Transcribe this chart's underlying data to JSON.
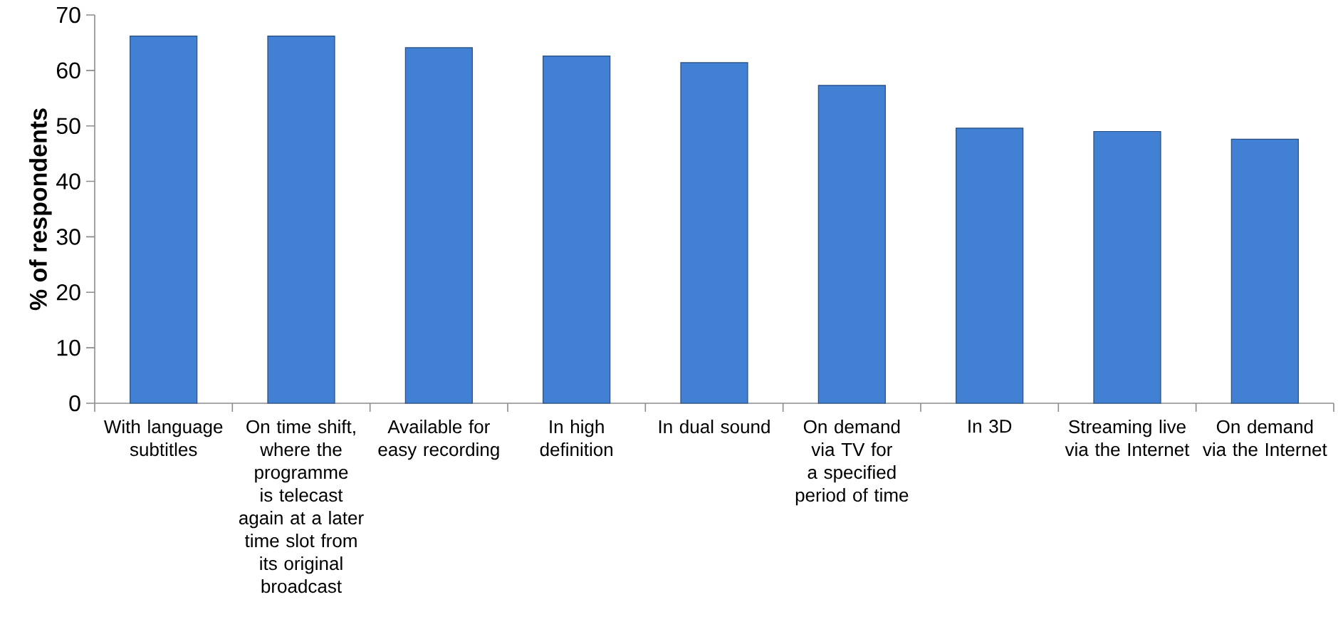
{
  "chart_data": {
    "type": "bar",
    "ylabel": "**% of respondents**",
    "categories": [
      "With language subtitles",
      "On time shift, where the programme is telecast again at a later time slot from its original broadcast",
      "Available for easy recording",
      "In high definition",
      "In dual sound",
      "On demand via TV for a specified period of time",
      "In 3D",
      "Streaming live via the Internet",
      "On demand via the Internet"
    ],
    "values": [
      66.2,
      66.2,
      64.1,
      62.6,
      61.4,
      57.3,
      49.6,
      49.0,
      47.6
    ],
    "color": "#4180d3",
    "ylim": [
      0,
      70
    ],
    "yticks": [
      0,
      10,
      20,
      30,
      40,
      50,
      60,
      70
    ],
    "grid": false
  }
}
